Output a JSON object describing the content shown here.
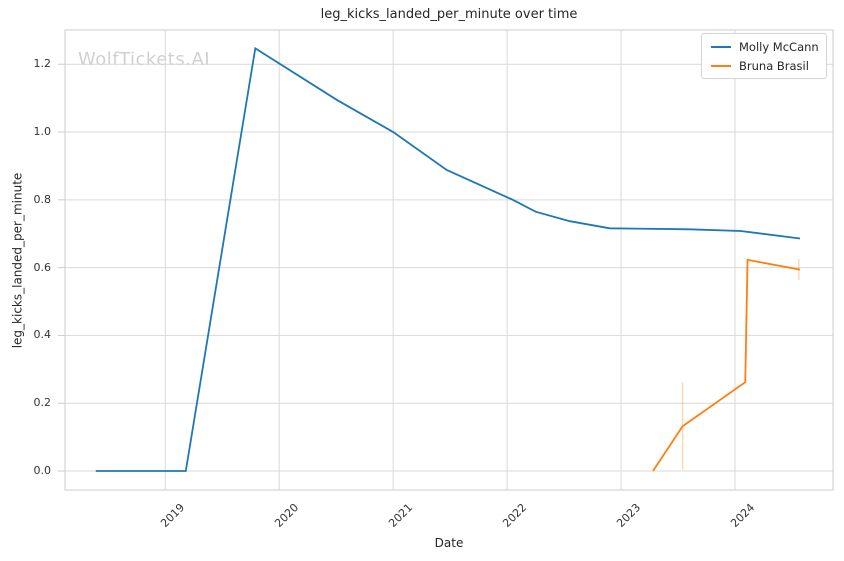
{
  "watermark": "WolfTickets.AI",
  "colors": {
    "grid": "#d9d9d9",
    "spine": "#cccccc",
    "tick_mark": "#cccccc",
    "text": "#262626",
    "tick_text": "#333333",
    "series_blue": "#1f77b4",
    "series_orange": "#ff7f0e",
    "error_bar": "rgba(255,127,14,0.3)"
  },
  "legend": {
    "position": "upper right",
    "entries": [
      {
        "label": "Molly McCann",
        "color": "#1f77b4"
      },
      {
        "label": "Bruna Brasil",
        "color": "#ff7f0e"
      }
    ]
  },
  "chart_data": {
    "type": "line",
    "title": "leg_kicks_landed_per_minute over time",
    "xlabel": "Date",
    "ylabel": "leg_kicks_landed_per_minute",
    "xlim": [
      2018.12,
      2024.86
    ],
    "ylim": [
      -0.056,
      1.301
    ],
    "grid": true,
    "legend_position": "upper right",
    "xticks": {
      "values": [
        2019,
        2020,
        2021,
        2022,
        2023,
        2024
      ],
      "labels": [
        "2019",
        "2020",
        "2021",
        "2022",
        "2023",
        "2024"
      ]
    },
    "yticks": {
      "values": [
        0.0,
        0.2,
        0.4,
        0.6,
        0.8,
        1.0,
        1.2
      ],
      "labels": [
        "0.0",
        "0.2",
        "0.4",
        "0.6",
        "0.8",
        "1.0",
        "1.2"
      ]
    },
    "series": [
      {
        "name": "Molly McCann",
        "color": "#1f77b4",
        "x": [
          2018.39,
          2019.18,
          2019.79,
          2020.51,
          2021.0,
          2021.47,
          2022.05,
          2022.25,
          2022.55,
          2022.9,
          2023.6,
          2024.05,
          2024.57
        ],
        "y": [
          0.0,
          0.0,
          1.247,
          1.094,
          1.0,
          0.888,
          0.8,
          0.765,
          0.737,
          0.716,
          0.713,
          0.708,
          0.686
        ],
        "error_bars": []
      },
      {
        "name": "Bruna Brasil",
        "color": "#ff7f0e",
        "x": [
          2023.28,
          2023.54,
          2024.09,
          2024.11,
          2024.57
        ],
        "y": [
          0.0,
          0.132,
          0.262,
          0.623,
          0.594
        ],
        "error_bars": [
          {
            "x": 2023.54,
            "lo": 0.005,
            "hi": 0.262
          },
          {
            "x": 2024.56,
            "lo": 0.563,
            "hi": 0.625
          }
        ]
      }
    ]
  }
}
